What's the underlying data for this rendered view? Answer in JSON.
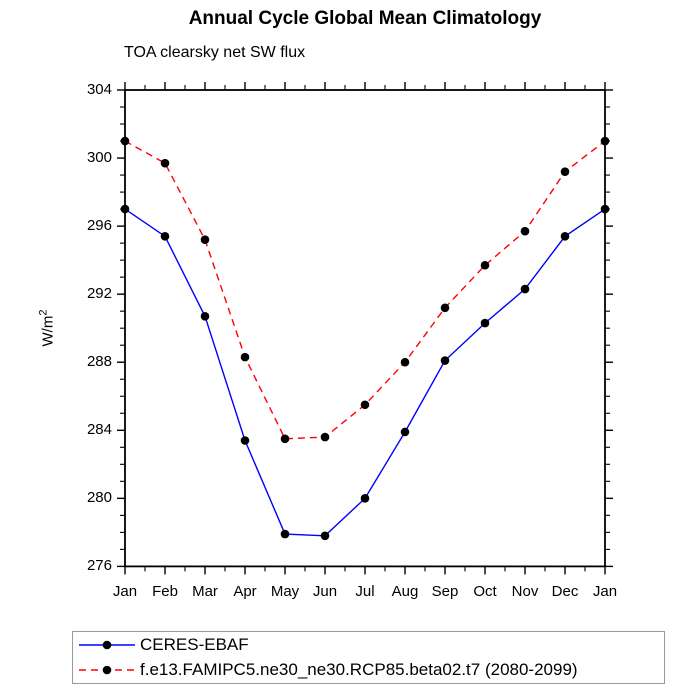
{
  "title": "Annual Cycle Global Mean Climatology",
  "subtitle": "TOA clearsky net SW flux",
  "y_axis_title": {
    "base": "W/m",
    "sup": "2"
  },
  "colors": {
    "obs_line": "#0000ff",
    "model_line": "#ff0000",
    "marker": "#000000",
    "frame": "#000000",
    "legend_border": "#9a9a9a"
  },
  "legend": {
    "entries": [
      {
        "label": "CERES-EBAF",
        "color": "#0000ff",
        "style": "solid"
      },
      {
        "label": "f.e13.FAMIPC5.ne30_ne30.RCP85.beta02.t7 (2080-2099)",
        "color": "#ff0000",
        "style": "dashed"
      }
    ]
  },
  "chart_data": {
    "type": "line",
    "title": "Annual Cycle Global Mean Climatology",
    "subtitle": "TOA clearsky net SW flux",
    "ylabel": "W/m2",
    "xlabel": "",
    "categories": [
      "Jan",
      "Feb",
      "Mar",
      "Apr",
      "May",
      "Jun",
      "Jul",
      "Aug",
      "Sep",
      "Oct",
      "Nov",
      "Dec",
      "Jan"
    ],
    "series": [
      {
        "name": "CERES-EBAF",
        "color": "#0000ff",
        "line_style": "solid",
        "marker": "filled-circle",
        "marker_color": "#000000",
        "values": [
          297.0,
          295.4,
          290.7,
          283.4,
          277.9,
          277.8,
          280.0,
          283.9,
          288.1,
          290.3,
          292.3,
          295.4,
          297.0
        ]
      },
      {
        "name": "f.e13.FAMIPC5.ne30_ne30.RCP85.beta02.t7 (2080-2099)",
        "color": "#ff0000",
        "line_style": "dashed",
        "marker": "filled-circle",
        "marker_color": "#000000",
        "values": [
          301.0,
          299.7,
          295.2,
          288.3,
          283.5,
          283.6,
          285.5,
          288.0,
          291.2,
          293.7,
          295.7,
          299.2,
          301.0
        ]
      }
    ],
    "ylim": [
      276,
      304
    ],
    "yticks": [
      276,
      280,
      284,
      288,
      292,
      296,
      300,
      304
    ],
    "yminor_step": 1,
    "xminor": "midpoint-between-months",
    "grid": false,
    "legend_position": "bottom-left-box"
  }
}
